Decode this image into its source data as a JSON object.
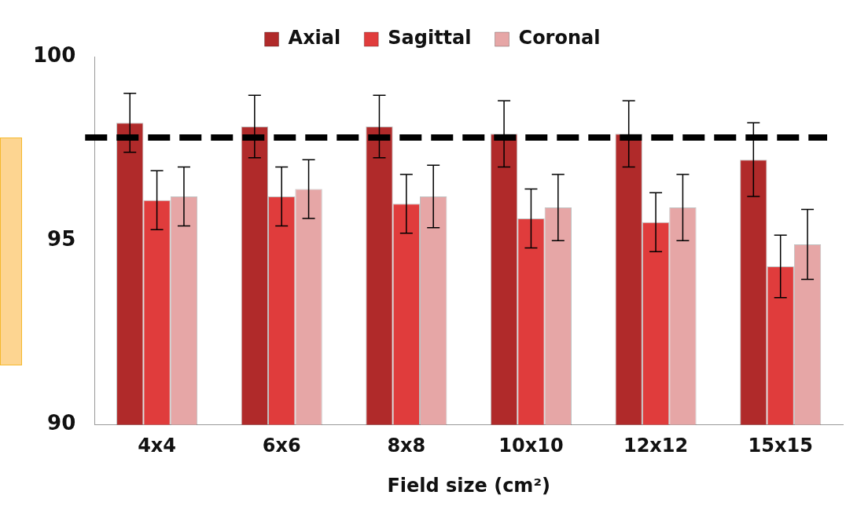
{
  "chart_data": {
    "type": "bar",
    "xlabel": "Field size (cm²)",
    "categories": [
      "4x4",
      "6x6",
      "8x8",
      "10x10",
      "12x12",
      "15x15"
    ],
    "series": [
      {
        "name": "Axial",
        "color": "#b02a2a",
        "values": [
          98.2,
          98.1,
          98.1,
          97.9,
          97.9,
          97.2
        ],
        "errors": [
          0.8,
          0.85,
          0.85,
          0.9,
          0.9,
          1.0
        ]
      },
      {
        "name": "Sagittal",
        "color": "#e03c3c",
        "values": [
          96.1,
          96.2,
          96.0,
          95.6,
          95.5,
          94.3
        ],
        "errors": [
          0.8,
          0.8,
          0.8,
          0.8,
          0.8,
          0.85
        ]
      },
      {
        "name": "Coronal",
        "color": "#e6a6a6",
        "values": [
          96.2,
          96.4,
          96.2,
          95.9,
          95.9,
          94.9
        ],
        "errors": [
          0.8,
          0.8,
          0.85,
          0.9,
          0.9,
          0.95
        ]
      }
    ],
    "ylim": [
      90,
      100
    ],
    "yticks": [
      90,
      95,
      100
    ],
    "grid": false,
    "legend": "top",
    "ref_lines": [
      {
        "axis": "y",
        "value": 97.8,
        "color": "#000000",
        "line_style": "dashed"
      }
    ]
  }
}
